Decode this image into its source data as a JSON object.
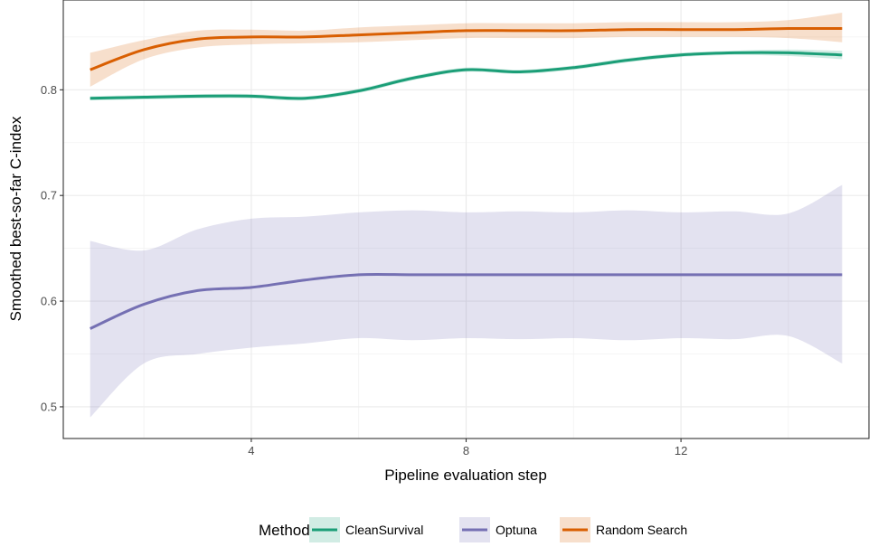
{
  "chart_data": {
    "type": "line",
    "xlabel": "Pipeline evaluation step",
    "ylabel": "Smoothed best-so-far C-index",
    "xlim": [
      0.5,
      15.5
    ],
    "ylim": [
      0.47,
      0.885
    ],
    "xticks": [
      4,
      8,
      12
    ],
    "yticks": [
      0.5,
      0.6,
      0.7,
      0.8
    ],
    "xtick_labels": [
      "4",
      "8",
      "12"
    ],
    "ytick_labels": [
      "0.5",
      "0.6",
      "0.7",
      "0.8"
    ],
    "grid": true,
    "legend": {
      "title": "Method",
      "position": "bottom"
    },
    "x": [
      1,
      2,
      3,
      4,
      5,
      6,
      7,
      8,
      9,
      10,
      11,
      12,
      13,
      14,
      15
    ],
    "series": [
      {
        "name": "CleanSurvival",
        "color": "#1b9e77",
        "values": [
          0.792,
          0.793,
          0.794,
          0.794,
          0.792,
          0.799,
          0.811,
          0.819,
          0.817,
          0.821,
          0.828,
          0.833,
          0.835,
          0.835,
          0.833
        ],
        "lower": [
          0.79,
          0.791,
          0.792,
          0.792,
          0.79,
          0.797,
          0.809,
          0.817,
          0.815,
          0.819,
          0.826,
          0.831,
          0.833,
          0.832,
          0.829
        ],
        "upper": [
          0.794,
          0.795,
          0.796,
          0.796,
          0.794,
          0.801,
          0.813,
          0.821,
          0.819,
          0.823,
          0.83,
          0.835,
          0.837,
          0.838,
          0.837
        ]
      },
      {
        "name": "Optuna",
        "color": "#7570b3",
        "values": [
          0.574,
          0.597,
          0.61,
          0.613,
          0.62,
          0.625,
          0.625,
          0.625,
          0.625,
          0.625,
          0.625,
          0.625,
          0.625,
          0.625,
          0.625
        ],
        "lower": [
          0.49,
          0.541,
          0.55,
          0.556,
          0.56,
          0.565,
          0.563,
          0.565,
          0.564,
          0.565,
          0.563,
          0.565,
          0.564,
          0.567,
          0.541
        ],
        "upper": [
          0.657,
          0.648,
          0.668,
          0.678,
          0.68,
          0.684,
          0.686,
          0.684,
          0.685,
          0.684,
          0.686,
          0.684,
          0.685,
          0.683,
          0.71
        ]
      },
      {
        "name": "Random Search",
        "color": "#d95f02",
        "values": [
          0.819,
          0.838,
          0.848,
          0.85,
          0.85,
          0.852,
          0.854,
          0.856,
          0.856,
          0.856,
          0.857,
          0.857,
          0.857,
          0.858,
          0.858
        ],
        "lower": [
          0.803,
          0.829,
          0.84,
          0.843,
          0.844,
          0.845,
          0.847,
          0.849,
          0.849,
          0.849,
          0.85,
          0.85,
          0.85,
          0.849,
          0.845
        ],
        "upper": [
          0.835,
          0.847,
          0.856,
          0.857,
          0.856,
          0.859,
          0.861,
          0.863,
          0.863,
          0.863,
          0.864,
          0.864,
          0.864,
          0.866,
          0.873
        ]
      }
    ]
  }
}
